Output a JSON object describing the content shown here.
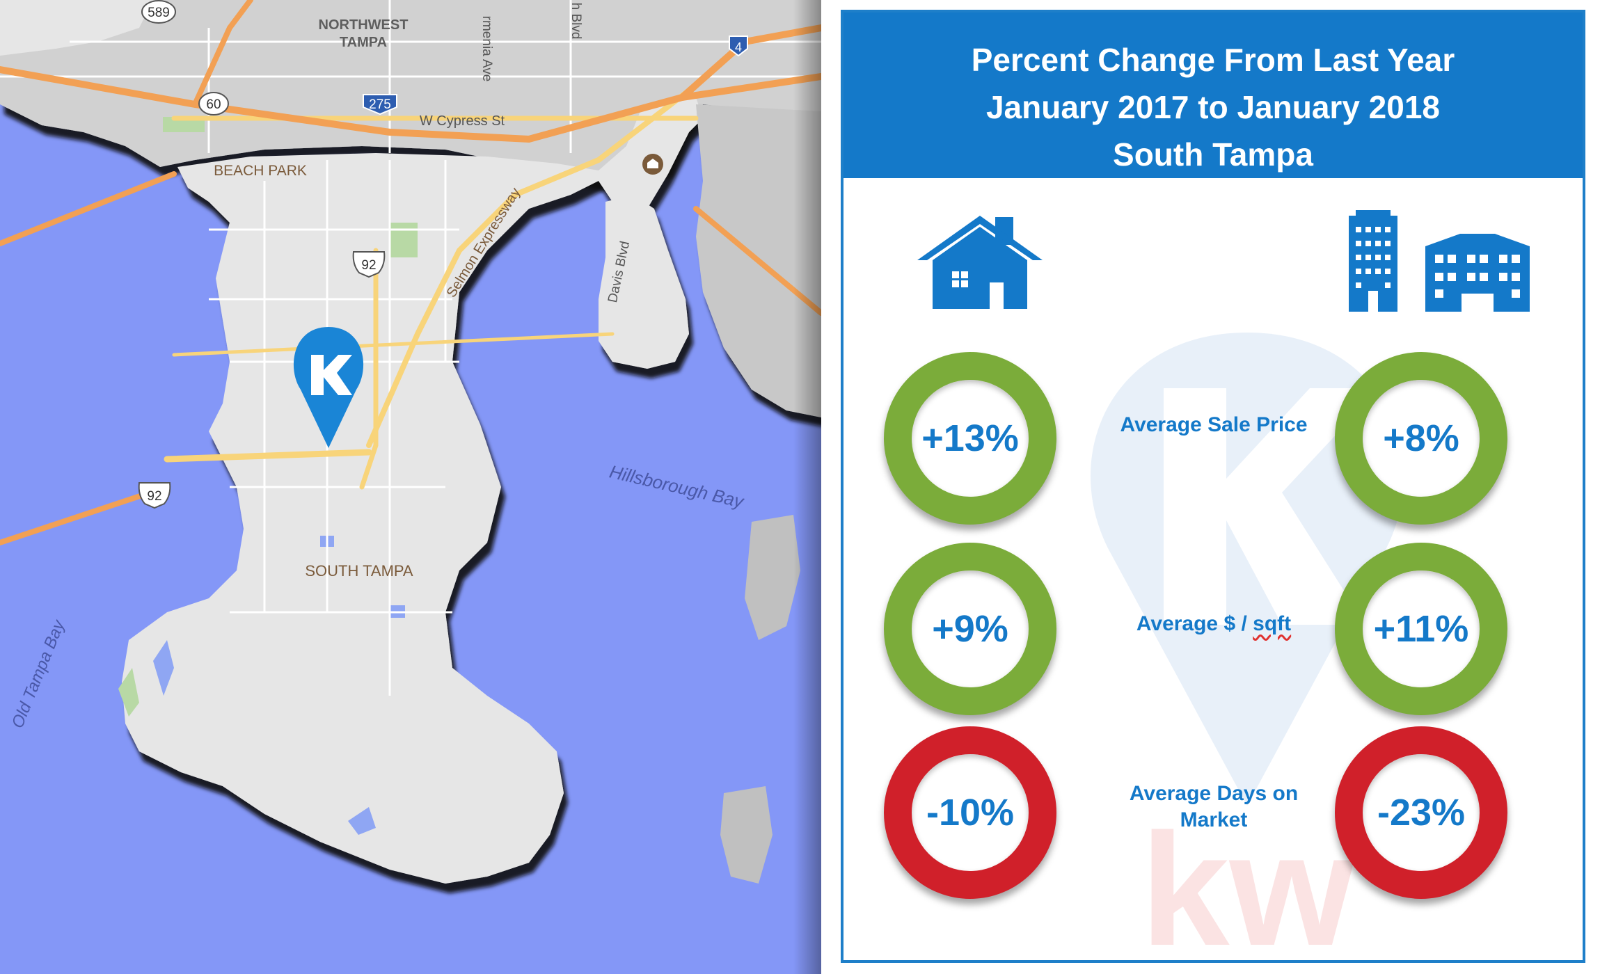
{
  "map": {
    "labels": {
      "northwest_tampa": [
        "NORTHWEST",
        "TAMPA"
      ],
      "beach_park": "BEACH PARK",
      "south_tampa": "SOUTH TAMPA",
      "w_cypress_st": "W Cypress St",
      "selmon_expressway": "Selmon Expressway",
      "davis_blvd": "Davis Blvd",
      "hillsborough_bay": "Hillsborough Bay",
      "old_tampa_bay": "Old Tampa Bay",
      "armenia_ave": "rmenia Ave",
      "blvd_top": "h Blvd"
    },
    "shields": {
      "us_589": "589",
      "sr_60": "60",
      "i_275": "275",
      "i_4": "4",
      "us_92_upper": "92",
      "us_92_lower": "92"
    },
    "colors": {
      "water": "#8497f7",
      "land": "#e6e6e6",
      "urban": "#d1d1d1",
      "highway": "#f2a054",
      "major_road": "#f8d47a",
      "marker": "#1a85d6"
    },
    "marker_icon": "location-pin-logo-icon"
  },
  "panel": {
    "title_lines": [
      "Percent Change From Last Year",
      "January 2017  to  January 2018",
      "South Tampa"
    ],
    "left_icon": "house-icon",
    "right_icon": "condo-buildings-icon",
    "metrics": [
      {
        "label_lines": [
          "Average Sale Price"
        ],
        "left_value": "+13%",
        "right_value": "+8%",
        "left_status": "increase",
        "right_status": "increase"
      },
      {
        "label_prefix": "Average $ / ",
        "label_suffix": "sqft",
        "left_value": "+9%",
        "right_value": "+11%",
        "left_status": "increase",
        "right_status": "increase"
      },
      {
        "label_lines": [
          "Average Days on",
          "Market"
        ],
        "left_value": "-10%",
        "right_value": "-23%",
        "left_status": "decrease",
        "right_status": "decrease"
      }
    ],
    "colors": {
      "accent": "#1479c9",
      "increase": "#7bac3a",
      "decrease": "#d0202a"
    },
    "watermark": "kw"
  }
}
